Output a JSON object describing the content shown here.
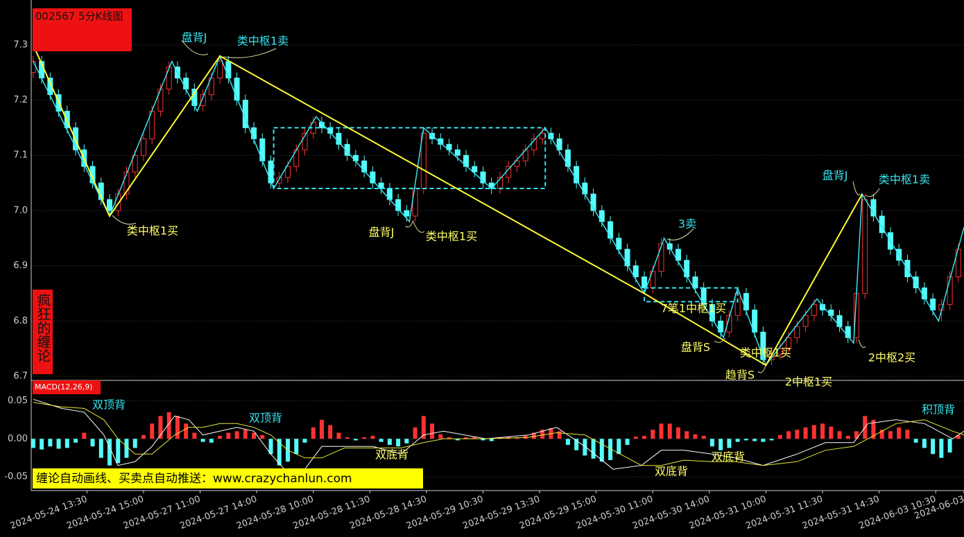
{
  "chart_data": {
    "type": "candlestick",
    "title": "002567 5分K线图",
    "side_label": "疯狂的缠论",
    "banner": "缠论自动画线、买卖点自动推送：www.crazychanlun.com",
    "xlim": [
      -0.7,
      329
    ],
    "xticks": [
      {
        "value": 19,
        "label": "2024-05-24 13:30"
      },
      {
        "value": 39,
        "label": "2024-05-24 15:00"
      },
      {
        "value": 59,
        "label": "2024-05-27 11:00"
      },
      {
        "value": 79,
        "label": "2024-05-27 14:00"
      },
      {
        "value": 99,
        "label": "2024-05-28 10:00"
      },
      {
        "value": 119,
        "label": "2024-05-28 11:30"
      },
      {
        "value": 139,
        "label": "2024-05-28 14:30"
      },
      {
        "value": 159,
        "label": "2024-05-29 10:30"
      },
      {
        "value": 179,
        "label": "2024-05-29 13:30"
      },
      {
        "value": 199,
        "label": "2024-05-29 15:00"
      },
      {
        "value": 219,
        "label": "2024-05-30 11:00"
      },
      {
        "value": 239,
        "label": "2024-05-30 14:00"
      },
      {
        "value": 259,
        "label": "2024-05-31 10:00"
      },
      {
        "value": 279,
        "label": "2024-05-31 11:30"
      },
      {
        "value": 299,
        "label": "2024-05-31 14:30"
      },
      {
        "value": 319,
        "label": "2024-06-03 10:30"
      },
      {
        "value": 329,
        "label": "2024-06-03"
      }
    ],
    "ylim": [
      6.7,
      7.36
    ],
    "yticks": [
      6.7,
      6.8,
      6.9,
      {
        "value": 7,
        "label": "7.0"
      },
      7.1,
      7.2,
      7.3
    ],
    "grid": true,
    "up_color": "#ff3232",
    "down_color": "#54fcfc",
    "candles": {
      "x": [
        0,
        3,
        6,
        9,
        12,
        15,
        18,
        21,
        24,
        27,
        30,
        33,
        36,
        39,
        42,
        45,
        48,
        51,
        54,
        57,
        60,
        63,
        66,
        69,
        72,
        75,
        78,
        81,
        84,
        87,
        90,
        93,
        96,
        99,
        102,
        105,
        108,
        111,
        114,
        117,
        120,
        123,
        126,
        129,
        132,
        135,
        138,
        141,
        144,
        147,
        150,
        153,
        156,
        159,
        162,
        165,
        168,
        171,
        174,
        177,
        180,
        183,
        186,
        189,
        192,
        195,
        198,
        201,
        204,
        207,
        210,
        213,
        216,
        219,
        222,
        225,
        228,
        231,
        234,
        237,
        240,
        243,
        246,
        249,
        252,
        255,
        258,
        261,
        264,
        267,
        270,
        273,
        276,
        279,
        282,
        285,
        288,
        291,
        294,
        297,
        300,
        303,
        306,
        309,
        312,
        315,
        318,
        321,
        324,
        327
      ],
      "ohlc": [
        [
          7.25,
          7.28,
          7.24,
          7.27
        ],
        [
          7.27,
          7.28,
          7.23,
          7.24
        ],
        [
          7.24,
          7.25,
          7.2,
          7.21
        ],
        [
          7.21,
          7.22,
          7.17,
          7.18
        ],
        [
          7.18,
          7.19,
          7.14,
          7.15
        ],
        [
          7.15,
          7.16,
          7.1,
          7.11
        ],
        [
          7.11,
          7.12,
          7.07,
          7.08
        ],
        [
          7.08,
          7.09,
          7.04,
          7.05
        ],
        [
          7.05,
          7.06,
          7.01,
          7.02
        ],
        [
          7.02,
          7.03,
          6.99,
          7.0
        ],
        [
          7.0,
          7.04,
          6.99,
          7.03
        ],
        [
          7.03,
          7.08,
          7.02,
          7.07
        ],
        [
          7.07,
          7.11,
          7.06,
          7.1
        ],
        [
          7.1,
          7.14,
          7.09,
          7.13
        ],
        [
          7.13,
          7.19,
          7.12,
          7.18
        ],
        [
          7.18,
          7.23,
          7.17,
          7.22
        ],
        [
          7.22,
          7.27,
          7.21,
          7.26
        ],
        [
          7.26,
          7.27,
          7.23,
          7.24
        ],
        [
          7.24,
          7.25,
          7.21,
          7.22
        ],
        [
          7.22,
          7.23,
          7.18,
          7.19
        ],
        [
          7.19,
          7.22,
          7.18,
          7.21
        ],
        [
          7.21,
          7.25,
          7.2,
          7.24
        ],
        [
          7.24,
          7.28,
          7.23,
          7.27
        ],
        [
          7.27,
          7.28,
          7.23,
          7.24
        ],
        [
          7.24,
          7.25,
          7.19,
          7.2
        ],
        [
          7.2,
          7.21,
          7.14,
          7.15
        ],
        [
          7.15,
          7.16,
          7.12,
          7.13
        ],
        [
          7.13,
          7.14,
          7.08,
          7.09
        ],
        [
          7.09,
          7.1,
          7.04,
          7.05
        ],
        [
          7.05,
          7.07,
          7.04,
          7.06
        ],
        [
          7.06,
          7.09,
          7.05,
          7.08
        ],
        [
          7.08,
          7.12,
          7.07,
          7.11
        ],
        [
          7.11,
          7.15,
          7.1,
          7.14
        ],
        [
          7.14,
          7.17,
          7.13,
          7.16
        ],
        [
          7.16,
          7.17,
          7.14,
          7.15
        ],
        [
          7.15,
          7.16,
          7.13,
          7.14
        ],
        [
          7.14,
          7.15,
          7.11,
          7.12
        ],
        [
          7.12,
          7.13,
          7.09,
          7.1
        ],
        [
          7.1,
          7.11,
          7.08,
          7.09
        ],
        [
          7.09,
          7.1,
          7.06,
          7.07
        ],
        [
          7.07,
          7.08,
          7.04,
          7.05
        ],
        [
          7.05,
          7.06,
          7.03,
          7.04
        ],
        [
          7.04,
          7.05,
          7.01,
          7.02
        ],
        [
          7.02,
          7.03,
          6.99,
          7.0
        ],
        [
          7.0,
          7.01,
          6.98,
          6.99
        ],
        [
          6.99,
          7.05,
          6.98,
          7.04
        ],
        [
          7.04,
          7.15,
          7.03,
          7.14
        ],
        [
          7.14,
          7.15,
          7.12,
          7.13
        ],
        [
          7.13,
          7.14,
          7.11,
          7.12
        ],
        [
          7.12,
          7.13,
          7.1,
          7.11
        ],
        [
          7.11,
          7.12,
          7.09,
          7.1
        ],
        [
          7.1,
          7.11,
          7.07,
          7.08
        ],
        [
          7.08,
          7.09,
          7.06,
          7.07
        ],
        [
          7.07,
          7.08,
          7.04,
          7.05
        ],
        [
          7.05,
          7.06,
          7.03,
          7.04
        ],
        [
          7.04,
          7.07,
          7.03,
          7.06
        ],
        [
          7.06,
          7.09,
          7.05,
          7.08
        ],
        [
          7.08,
          7.1,
          7.07,
          7.09
        ],
        [
          7.09,
          7.12,
          7.08,
          7.11
        ],
        [
          7.11,
          7.14,
          7.1,
          7.13
        ],
        [
          7.13,
          7.15,
          7.12,
          7.14
        ],
        [
          7.14,
          7.15,
          7.12,
          7.13
        ],
        [
          7.13,
          7.14,
          7.1,
          7.11
        ],
        [
          7.11,
          7.12,
          7.07,
          7.08
        ],
        [
          7.08,
          7.09,
          7.04,
          7.05
        ],
        [
          7.05,
          7.06,
          7.02,
          7.03
        ],
        [
          7.03,
          7.04,
          6.99,
          7.0
        ],
        [
          7.0,
          7.01,
          6.97,
          6.98
        ],
        [
          6.98,
          6.99,
          6.94,
          6.95
        ],
        [
          6.95,
          6.96,
          6.92,
          6.93
        ],
        [
          6.93,
          6.94,
          6.89,
          6.9
        ],
        [
          6.9,
          6.91,
          6.87,
          6.88
        ],
        [
          6.88,
          6.89,
          6.85,
          6.86
        ],
        [
          6.86,
          6.9,
          6.85,
          6.89
        ],
        [
          6.89,
          6.95,
          6.88,
          6.94
        ],
        [
          6.94,
          6.95,
          6.92,
          6.93
        ],
        [
          6.93,
          6.94,
          6.9,
          6.91
        ],
        [
          6.91,
          6.92,
          6.87,
          6.88
        ],
        [
          6.88,
          6.89,
          6.85,
          6.86
        ],
        [
          6.86,
          6.87,
          6.82,
          6.83
        ],
        [
          6.83,
          6.84,
          6.79,
          6.8
        ],
        [
          6.8,
          6.81,
          6.77,
          6.78
        ],
        [
          6.78,
          6.82,
          6.77,
          6.81
        ],
        [
          6.81,
          6.86,
          6.8,
          6.85
        ],
        [
          6.85,
          6.86,
          6.81,
          6.82
        ],
        [
          6.82,
          6.83,
          6.77,
          6.78
        ],
        [
          6.78,
          6.79,
          6.72,
          6.73
        ],
        [
          6.73,
          6.75,
          6.72,
          6.74
        ],
        [
          6.74,
          6.76,
          6.73,
          6.75
        ],
        [
          6.75,
          6.78,
          6.74,
          6.77
        ],
        [
          6.77,
          6.8,
          6.76,
          6.79
        ],
        [
          6.79,
          6.82,
          6.78,
          6.81
        ],
        [
          6.81,
          6.84,
          6.8,
          6.83
        ],
        [
          6.83,
          6.84,
          6.81,
          6.82
        ],
        [
          6.82,
          6.83,
          6.8,
          6.81
        ],
        [
          6.81,
          6.82,
          6.78,
          6.79
        ],
        [
          6.79,
          6.8,
          6.76,
          6.77
        ],
        [
          6.77,
          6.86,
          6.76,
          6.85
        ],
        [
          6.85,
          7.03,
          6.84,
          7.02
        ],
        [
          7.02,
          7.03,
          6.98,
          6.99
        ],
        [
          6.99,
          7.0,
          6.95,
          6.96
        ],
        [
          6.96,
          6.97,
          6.92,
          6.93
        ],
        [
          6.93,
          6.94,
          6.9,
          6.91
        ],
        [
          6.91,
          6.92,
          6.87,
          6.88
        ],
        [
          6.88,
          6.89,
          6.85,
          6.86
        ],
        [
          6.86,
          6.87,
          6.83,
          6.84
        ],
        [
          6.84,
          6.85,
          6.81,
          6.82
        ],
        [
          6.82,
          6.84,
          6.8,
          6.83
        ],
        [
          6.83,
          6.89,
          6.82,
          6.88
        ],
        [
          6.88,
          6.94,
          6.87,
          6.93
        ]
      ]
    },
    "pens": {
      "color": "#35e5f0",
      "x": [
        0,
        27,
        49,
        58,
        66,
        85,
        100,
        133,
        138,
        162,
        181,
        216,
        223,
        244,
        249,
        259,
        277,
        290,
        293,
        320,
        329
      ],
      "values": [
        7.27,
        6.99,
        7.27,
        7.18,
        7.28,
        7.04,
        7.17,
        6.98,
        7.15,
        7.04,
        7.15,
        6.85,
        6.95,
        6.77,
        6.86,
        6.72,
        6.84,
        6.76,
        7.03,
        6.8,
        6.97
      ]
    },
    "segments": {
      "color": "#ffff33",
      "x": [
        0,
        27,
        66,
        216,
        259,
        293
      ],
      "values": [
        7.3,
        6.99,
        7.28,
        6.85,
        6.72,
        7.03
      ]
    },
    "centers": {
      "color": "#35e5f0",
      "items": [
        {
          "x": [
            85,
            181
          ],
          "y": [
            7.04,
            7.15
          ]
        },
        {
          "x": [
            216,
            249
          ],
          "y": [
            6.835,
            6.86
          ]
        }
      ]
    },
    "annotations": [
      {
        "text": "盘背J",
        "color": "#35e5f0"
      },
      {
        "text": "类中枢1卖",
        "color": "#35e5f0"
      },
      {
        "text": "类中枢1买",
        "color": "#ffff66"
      },
      {
        "text": "盘背J",
        "color": "#ffff66"
      },
      {
        "text": "类中枢1买",
        "color": "#ffff66"
      },
      {
        "text": "3卖",
        "color": "#35e5f0"
      },
      {
        "text": "7笔1中枢1买",
        "color": "#ffff66"
      },
      {
        "text": "盘背S",
        "color": "#ffff66"
      },
      {
        "text": "类中枢1买",
        "color": "#ffff66"
      },
      {
        "text": "趋背S",
        "color": "#ffff66"
      },
      {
        "text": "2中枢1买",
        "color": "#ffff66"
      },
      {
        "text": "盘背J",
        "color": "#35e5f0"
      },
      {
        "text": "类中枢1卖",
        "color": "#35e5f0"
      },
      {
        "text": "2中枢2买",
        "color": "#ffff66"
      }
    ],
    "macd": {
      "label": "MACD(12,26,9)",
      "ylim": [
        -0.068,
        0.074
      ],
      "yticks": [
        0.05,
        {
          "value": 0,
          "label": "0.00"
        },
        -0.05
      ],
      "hist": [
        -0.012,
        -0.014,
        -0.01,
        -0.013,
        -0.012,
        -0.005,
        0.008,
        -0.01,
        -0.025,
        -0.035,
        -0.032,
        -0.025,
        -0.012,
        0.005,
        0.02,
        0.03,
        0.035,
        0.03,
        0.02,
        0.008,
        -0.004,
        -0.005,
        0.004,
        0.008,
        0.01,
        0.012,
        0.008,
        0.005,
        -0.02,
        -0.035,
        -0.03,
        -0.02,
        -0.005,
        0.015,
        0.025,
        0.018,
        0.008,
        0.002,
        -0.002,
        0.002,
        0.004,
        -0.004,
        -0.008,
        -0.01,
        -0.006,
        0.015,
        0.03,
        0.02,
        0.006,
        0.002,
        -0.002,
        0.002,
        0.003,
        -0.002,
        -0.003,
        0.002,
        0.003,
        0.002,
        0.004,
        0.008,
        0.012,
        0.014,
        0.01,
        -0.008,
        -0.015,
        -0.022,
        -0.026,
        -0.03,
        -0.028,
        -0.02,
        -0.008,
        0.003,
        0.004,
        0.012,
        0.02,
        0.02,
        0.015,
        0.01,
        0.006,
        0.004,
        -0.01,
        -0.015,
        -0.012,
        -0.004,
        -0.002,
        -0.003,
        -0.004,
        -0.002,
        0.005,
        0.01,
        0.012,
        0.015,
        0.018,
        0.02,
        0.016,
        0.01,
        0.004,
        0.01,
        0.03,
        0.025,
        0.012,
        0.01,
        0.015,
        0.012,
        -0.005,
        -0.012,
        -0.02,
        -0.025,
        -0.018,
        0.005
      ],
      "x": [
        0,
        10,
        18,
        25,
        30,
        36,
        42,
        50,
        55,
        60,
        66,
        72,
        78,
        84,
        90,
        96,
        102,
        110,
        120,
        130,
        138,
        145,
        160,
        175,
        185,
        195,
        205,
        215,
        222,
        230,
        240,
        248,
        258,
        270,
        280,
        290,
        295,
        305,
        315,
        325,
        329
      ],
      "dif": {
        "color": "#ffffff",
        "values": [
          0.052,
          0.04,
          0.035,
          0.005,
          -0.035,
          -0.03,
          -0.01,
          0.03,
          0.025,
          0.005,
          0.01,
          0.015,
          0.01,
          -0.02,
          -0.045,
          -0.04,
          -0.01,
          -0.01,
          -0.01,
          -0.02,
          0.005,
          0.01,
          0.0,
          0.005,
          0.015,
          -0.01,
          -0.04,
          -0.035,
          -0.015,
          -0.015,
          -0.02,
          -0.025,
          -0.035,
          -0.02,
          -0.005,
          -0.005,
          0.02,
          0.025,
          0.02,
          0.0,
          0.01
        ]
      },
      "dea": {
        "color": "#e8e83a",
        "values": [
          0.048,
          0.042,
          0.04,
          0.025,
          0.0,
          -0.02,
          -0.02,
          0.005,
          0.015,
          0.015,
          0.02,
          0.02,
          0.015,
          0.005,
          -0.015,
          -0.025,
          -0.025,
          -0.012,
          -0.012,
          -0.012,
          -0.005,
          0.0,
          0.0,
          0.002,
          0.008,
          0.005,
          -0.015,
          -0.035,
          -0.035,
          -0.028,
          -0.03,
          -0.03,
          -0.035,
          -0.03,
          -0.015,
          -0.01,
          0.0,
          0.02,
          0.025,
          0.01,
          0.005
        ]
      },
      "annotations": [
        {
          "text": "双顶背",
          "color": "#35e5f0"
        },
        {
          "text": "双顶背",
          "color": "#35e5f0"
        },
        {
          "text": "双底背",
          "color": "#ffff66"
        },
        {
          "text": "双底背",
          "color": "#ffff66"
        },
        {
          "text": "双底背",
          "color": "#ffff66"
        },
        {
          "text": "积顶背",
          "color": "#35e5f0"
        }
      ]
    }
  }
}
